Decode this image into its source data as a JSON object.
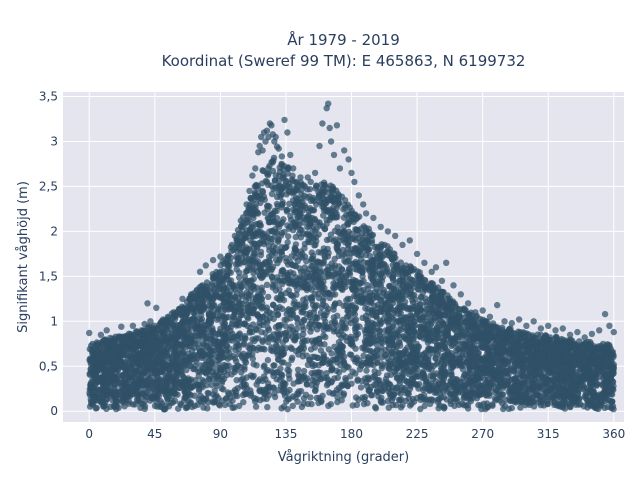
{
  "chart_data": {
    "type": "scatter",
    "title": "År 1979 - 2019",
    "subtitle": "Koordinat (Sweref 99 TM): E 465863, N 6199732",
    "xlabel": "Vågriktning (grader)",
    "ylabel": "Signifikant våghöjd (m)",
    "xlim": [
      -18,
      367
    ],
    "ylim": [
      -0.12,
      3.55
    ],
    "xticks": [
      0,
      45,
      90,
      135,
      180,
      225,
      270,
      315,
      360
    ],
    "yticks": [
      0,
      0.5,
      1,
      1.5,
      2,
      2.5,
      3,
      3.5
    ],
    "xtick_labels": [
      "0",
      "45",
      "90",
      "135",
      "180",
      "225",
      "270",
      "315",
      "360"
    ],
    "ytick_labels": [
      "0",
      "0,5",
      "1",
      "1,5",
      "2",
      "2,5",
      "3",
      "3,5"
    ],
    "grid": true,
    "legend": "none",
    "background_color": "#e5e5f0",
    "marker_color": "#2f5066",
    "envelope": {
      "direction_deg": [
        0,
        15,
        30,
        45,
        60,
        75,
        90,
        100,
        110,
        120,
        130,
        140,
        150,
        160,
        170,
        180,
        195,
        210,
        225,
        240,
        255,
        270,
        285,
        300,
        315,
        330,
        345,
        360
      ],
      "typical_max_height_m": [
        0.72,
        0.8,
        0.86,
        0.95,
        1.1,
        1.35,
        1.6,
        1.9,
        2.35,
        2.7,
        2.95,
        2.6,
        2.45,
        2.55,
        2.45,
        2.25,
        1.95,
        1.75,
        1.55,
        1.35,
        1.15,
        1.0,
        0.92,
        0.85,
        0.82,
        0.78,
        0.75,
        0.72
      ]
    },
    "highlight_points": [
      {
        "x": 0,
        "y": 0.87
      },
      {
        "x": 8,
        "y": 0.85
      },
      {
        "x": 12,
        "y": 0.9
      },
      {
        "x": 22,
        "y": 0.94
      },
      {
        "x": 30,
        "y": 0.95
      },
      {
        "x": 38,
        "y": 0.97
      },
      {
        "x": 42,
        "y": 1.0
      },
      {
        "x": 46,
        "y": 1.15
      },
      {
        "x": 40,
        "y": 1.2
      },
      {
        "x": 54,
        "y": 1.05
      },
      {
        "x": 58,
        "y": 1.1
      },
      {
        "x": 64,
        "y": 1.25
      },
      {
        "x": 70,
        "y": 1.3
      },
      {
        "x": 74,
        "y": 1.35
      },
      {
        "x": 76,
        "y": 1.55
      },
      {
        "x": 80,
        "y": 1.62
      },
      {
        "x": 85,
        "y": 1.68
      },
      {
        "x": 90,
        "y": 1.72
      },
      {
        "x": 95,
        "y": 1.7
      },
      {
        "x": 98,
        "y": 1.85
      },
      {
        "x": 100,
        "y": 1.95
      },
      {
        "x": 104,
        "y": 2.12
      },
      {
        "x": 108,
        "y": 2.3
      },
      {
        "x": 110,
        "y": 2.45
      },
      {
        "x": 112,
        "y": 2.62
      },
      {
        "x": 114,
        "y": 2.7
      },
      {
        "x": 116,
        "y": 2.88
      },
      {
        "x": 117,
        "y": 2.95
      },
      {
        "x": 118,
        "y": 3.05
      },
      {
        "x": 119,
        "y": 2.9
      },
      {
        "x": 120,
        "y": 3.1
      },
      {
        "x": 121,
        "y": 3.0
      },
      {
        "x": 122,
        "y": 3.12
      },
      {
        "x": 123,
        "y": 3.05
      },
      {
        "x": 124,
        "y": 3.2
      },
      {
        "x": 125,
        "y": 3.18
      },
      {
        "x": 126,
        "y": 3.08
      },
      {
        "x": 127,
        "y": 3.0
      },
      {
        "x": 128,
        "y": 3.05
      },
      {
        "x": 130,
        "y": 2.92
      },
      {
        "x": 132,
        "y": 2.75
      },
      {
        "x": 134,
        "y": 3.24
      },
      {
        "x": 136,
        "y": 3.1
      },
      {
        "x": 138,
        "y": 2.85
      },
      {
        "x": 140,
        "y": 2.7
      },
      {
        "x": 142,
        "y": 2.55
      },
      {
        "x": 145,
        "y": 2.6
      },
      {
        "x": 148,
        "y": 2.5
      },
      {
        "x": 150,
        "y": 2.6
      },
      {
        "x": 152,
        "y": 2.55
      },
      {
        "x": 155,
        "y": 2.65
      },
      {
        "x": 158,
        "y": 2.95
      },
      {
        "x": 160,
        "y": 3.2
      },
      {
        "x": 163,
        "y": 3.37
      },
      {
        "x": 164,
        "y": 3.42
      },
      {
        "x": 165,
        "y": 3.15
      },
      {
        "x": 166,
        "y": 3.0
      },
      {
        "x": 168,
        "y": 2.85
      },
      {
        "x": 170,
        "y": 3.18
      },
      {
        "x": 172,
        "y": 2.7
      },
      {
        "x": 175,
        "y": 2.9
      },
      {
        "x": 178,
        "y": 2.8
      },
      {
        "x": 180,
        "y": 2.65
      },
      {
        "x": 182,
        "y": 2.55
      },
      {
        "x": 185,
        "y": 2.4
      },
      {
        "x": 188,
        "y": 2.3
      },
      {
        "x": 190,
        "y": 2.2
      },
      {
        "x": 195,
        "y": 2.15
      },
      {
        "x": 200,
        "y": 2.05
      },
      {
        "x": 205,
        "y": 2.0
      },
      {
        "x": 210,
        "y": 1.95
      },
      {
        "x": 215,
        "y": 1.85
      },
      {
        "x": 220,
        "y": 1.9
      },
      {
        "x": 225,
        "y": 1.75
      },
      {
        "x": 230,
        "y": 1.65
      },
      {
        "x": 235,
        "y": 1.55
      },
      {
        "x": 238,
        "y": 1.6
      },
      {
        "x": 242,
        "y": 1.45
      },
      {
        "x": 245,
        "y": 1.65
      },
      {
        "x": 250,
        "y": 1.4
      },
      {
        "x": 255,
        "y": 1.3
      },
      {
        "x": 260,
        "y": 1.2
      },
      {
        "x": 265,
        "y": 1.1
      },
      {
        "x": 270,
        "y": 1.12
      },
      {
        "x": 275,
        "y": 1.05
      },
      {
        "x": 280,
        "y": 1.18
      },
      {
        "x": 285,
        "y": 1.0
      },
      {
        "x": 290,
        "y": 0.98
      },
      {
        "x": 295,
        "y": 1.02
      },
      {
        "x": 300,
        "y": 0.95
      },
      {
        "x": 305,
        "y": 1.0
      },
      {
        "x": 310,
        "y": 0.92
      },
      {
        "x": 315,
        "y": 0.95
      },
      {
        "x": 320,
        "y": 0.9
      },
      {
        "x": 325,
        "y": 0.92
      },
      {
        "x": 330,
        "y": 0.85
      },
      {
        "x": 335,
        "y": 0.88
      },
      {
        "x": 340,
        "y": 0.82
      },
      {
        "x": 345,
        "y": 0.86
      },
      {
        "x": 350,
        "y": 0.9
      },
      {
        "x": 354,
        "y": 1.08
      },
      {
        "x": 357,
        "y": 0.95
      },
      {
        "x": 360,
        "y": 0.88
      }
    ]
  }
}
